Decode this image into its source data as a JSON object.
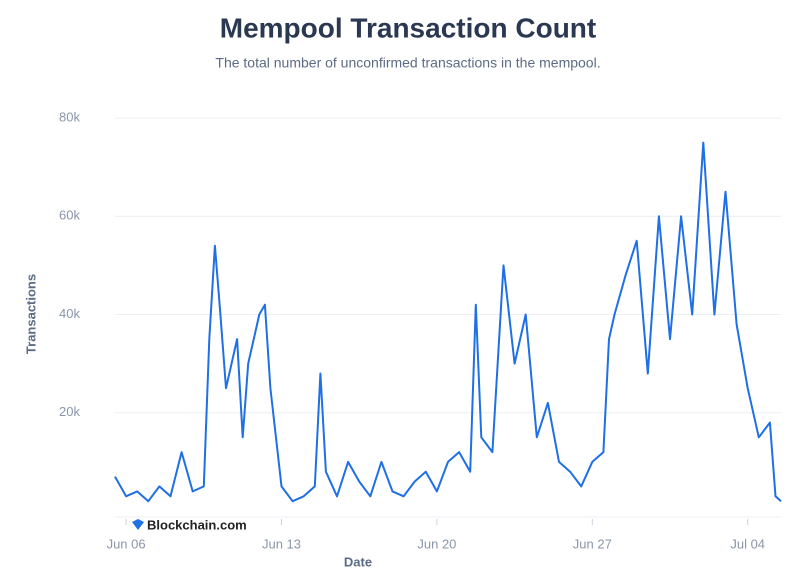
{
  "chart_data": {
    "type": "line",
    "title": "Mempool Transaction Count",
    "subtitle": "The total number of unconfirmed transactions in the mempool.",
    "x_label": "Date",
    "y_label": "Transactions",
    "watermark": "Blockchain.com",
    "x": [
      5.5,
      6,
      6.5,
      7,
      7.5,
      8,
      8.5,
      9,
      9.5,
      9.75,
      10,
      10.25,
      10.5,
      11,
      11.25,
      11.5,
      12,
      12.25,
      12.5,
      13,
      13.5,
      14,
      14.5,
      14.75,
      15,
      15.5,
      16,
      16.5,
      17,
      17.5,
      18,
      18.5,
      19,
      19.5,
      20,
      20.5,
      21,
      21.5,
      21.75,
      22,
      22.5,
      23,
      23.5,
      24,
      24.5,
      25,
      25.5,
      26,
      26.5,
      27,
      27.5,
      27.75,
      28,
      28.5,
      29,
      29.5,
      30,
      30.5,
      31,
      31.5,
      32,
      32.5,
      33,
      33.5,
      34,
      34.5,
      35,
      35.25,
      35.5
    ],
    "series": [
      {
        "name": "Transactions",
        "color": "#1f6fe5",
        "values": [
          7000,
          3000,
          4000,
          2000,
          5000,
          3000,
          12000,
          4000,
          5000,
          35000,
          54000,
          40000,
          25000,
          35000,
          15000,
          30000,
          40000,
          42000,
          25000,
          5000,
          2000,
          3000,
          5000,
          28000,
          8000,
          3000,
          10000,
          6000,
          3000,
          10000,
          4000,
          3000,
          6000,
          8000,
          4000,
          10000,
          12000,
          8000,
          42000,
          15000,
          12000,
          50000,
          30000,
          40000,
          15000,
          22000,
          10000,
          8000,
          5000,
          10000,
          12000,
          35000,
          40000,
          48000,
          55000,
          28000,
          60000,
          35000,
          60000,
          40000,
          75000,
          40000,
          65000,
          38000,
          25000,
          15000,
          18000,
          3000,
          2000
        ]
      }
    ],
    "xlim": [
      5.5,
      35.5
    ],
    "ylim": [
      0,
      80000
    ],
    "xticks": [
      {
        "value": 6,
        "label": "Jun 06"
      },
      {
        "value": 13,
        "label": "Jun 13"
      },
      {
        "value": 20,
        "label": "Jun 20"
      },
      {
        "value": 27,
        "label": "Jun 27"
      },
      {
        "value": 34,
        "label": "Jul 04"
      }
    ],
    "yticks": [
      {
        "value": 20000,
        "label": "20k"
      },
      {
        "value": 40000,
        "label": "40k"
      },
      {
        "value": 60000,
        "label": "60k"
      },
      {
        "value": 80000,
        "label": "80k"
      }
    ],
    "grid": true
  }
}
